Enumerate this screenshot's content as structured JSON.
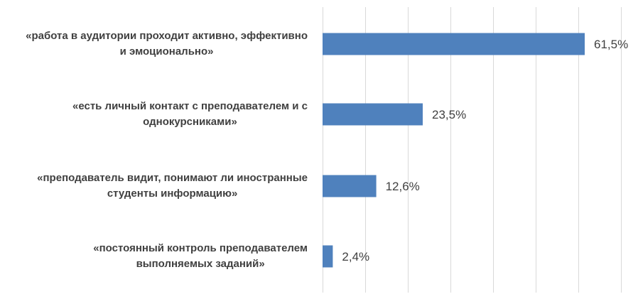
{
  "chart_data": {
    "type": "bar",
    "orientation": "horizontal",
    "categories": [
      "«работа в аудитории проходит активно, эффективно и эмоционально»",
      "«есть личный контакт с преподавателем и с однокурсниками»",
      "«преподаватель видит, понимают ли иностранные студенты информацию»",
      "«постоянный контроль преподавателем выполняемых заданий»"
    ],
    "category_lines": [
      [
        "«работа в аудитории проходит активно, эффективно",
        "и эмоционально»"
      ],
      [
        "«есть личный контакт с преподавателем и с",
        "однокурсниками»"
      ],
      [
        "«преподаватель видит, понимают ли иностранные",
        "студенты информацию»"
      ],
      [
        "«постоянный контроль преподавателем",
        "выполняемых заданий»"
      ]
    ],
    "values": [
      61.5,
      23.5,
      12.6,
      2.4
    ],
    "value_labels": [
      "61,5%",
      "23,5%",
      "12,6%",
      "2,4%"
    ],
    "xlim": [
      0,
      70
    ],
    "grid": true,
    "legend": "none",
    "bar_color": "#4f81bd",
    "title": "",
    "xlabel": "",
    "ylabel": ""
  }
}
